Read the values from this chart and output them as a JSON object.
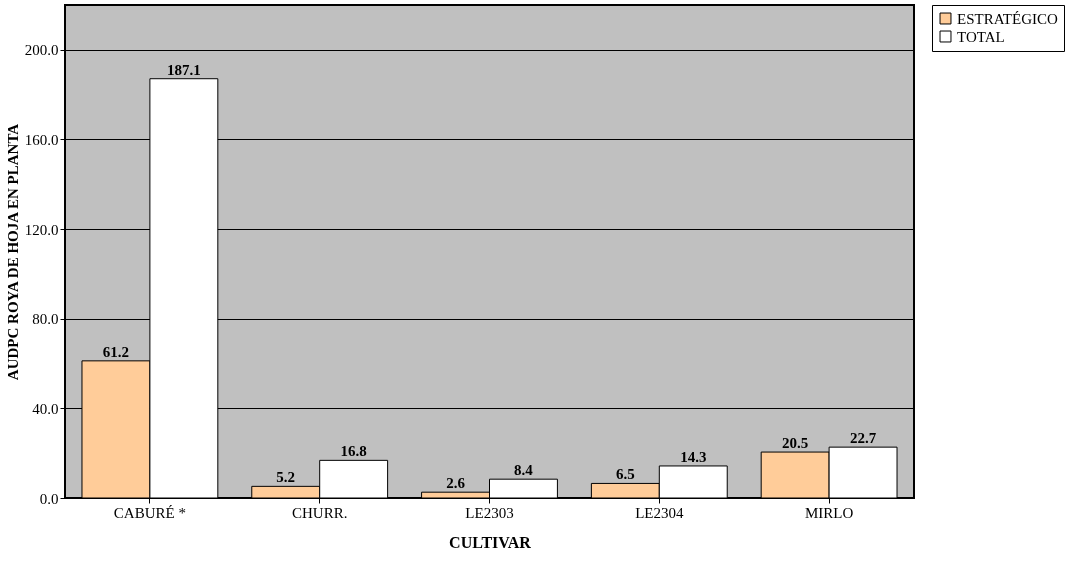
{
  "chart_data": {
    "type": "bar",
    "xlabel": "CULTIVAR",
    "ylabel": "AUDPC ROYA DE HOJA EN PLANTA",
    "categories": [
      "CABURÉ *",
      "CHURR.",
      "LE2303",
      "LE2304",
      "MIRLO"
    ],
    "series": [
      {
        "name": "ESTRATÉGICO",
        "color": "#ffcc99",
        "values": [
          61.2,
          5.2,
          2.6,
          6.5,
          20.5
        ]
      },
      {
        "name": "TOTAL",
        "color": "#ffffff",
        "values": [
          187.1,
          16.8,
          8.4,
          14.3,
          22.7
        ]
      }
    ],
    "ylim": [
      0,
      220
    ],
    "yticks": [
      {
        "value": 0,
        "label": "0.0"
      },
      {
        "value": 40,
        "label": "40.0"
      },
      {
        "value": 80,
        "label": "80.0"
      },
      {
        "value": 120,
        "label": "120.0"
      },
      {
        "value": 160,
        "label": "160.0"
      },
      {
        "value": 200,
        "label": "200.0"
      }
    ],
    "grid": "y",
    "legend": "right",
    "data_labels": true
  }
}
